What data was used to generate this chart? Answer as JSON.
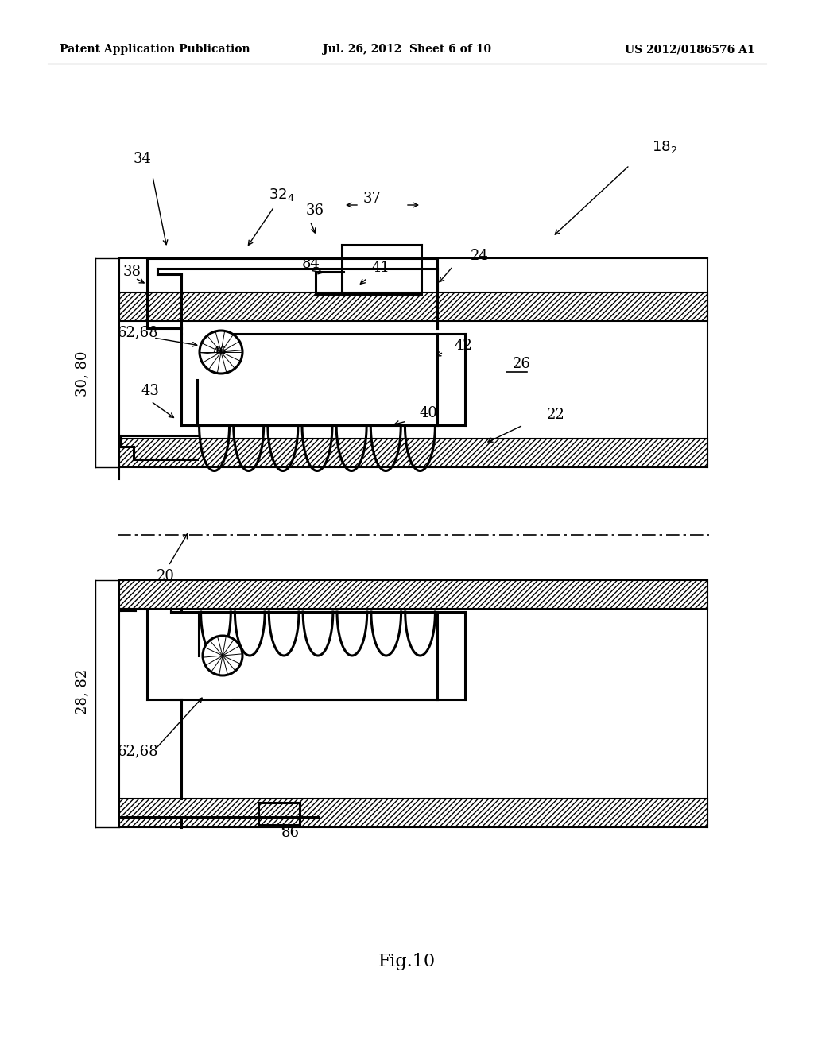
{
  "bg_color": "#ffffff",
  "line_color": "#000000",
  "header_left": "Patent Application Publication",
  "header_mid": "Jul. 26, 2012  Sheet 6 of 10",
  "header_right": "US 2012/0186576 A1",
  "fig_label": "Fig.10"
}
